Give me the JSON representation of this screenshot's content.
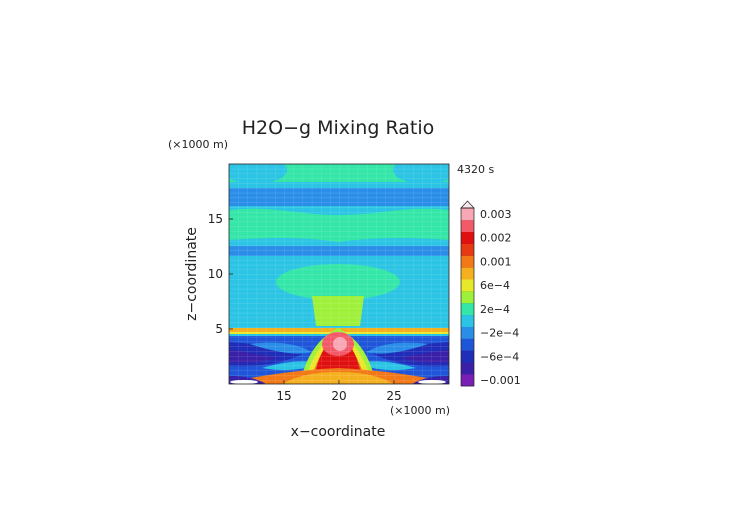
{
  "chart_data": {
    "type": "heatmap",
    "title": "H2O−g Mixing Ratio",
    "xlabel": "x−coordinate",
    "ylabel": "z−coordinate",
    "x_unit": "(×1000 m)",
    "y_unit": "(×1000 m)",
    "time_label": "4320 s",
    "xlim": [
      10,
      30
    ],
    "ylim": [
      0,
      20
    ],
    "x_ticks": [
      15,
      20,
      25
    ],
    "y_ticks": [
      5,
      10,
      15
    ],
    "colorbar": {
      "tick_labels": [
        "0.003",
        "0.002",
        "0.001",
        "6e−4",
        "2e−4",
        "−2e−4",
        "−6e−4",
        "−0.001"
      ],
      "tick_values": [
        0.003,
        0.002,
        0.001,
        0.0006,
        0.0002,
        -0.0002,
        -0.0006,
        -0.001
      ],
      "levels": [
        {
          "value": -0.001,
          "color": "#7a1fb5"
        },
        {
          "value": -0.0008,
          "color": "#3a1fa8"
        },
        {
          "value": -0.0006,
          "color": "#1f2db8"
        },
        {
          "value": -0.0004,
          "color": "#1f55d8"
        },
        {
          "value": -0.0002,
          "color": "#2a8ee8"
        },
        {
          "value": 0.0,
          "color": "#2bc4e4"
        },
        {
          "value": 0.0002,
          "color": "#34e6a8"
        },
        {
          "value": 0.0004,
          "color": "#9ef03a"
        },
        {
          "value": 0.0006,
          "color": "#e8e82a"
        },
        {
          "value": 0.0008,
          "color": "#f5b020"
        },
        {
          "value": 0.001,
          "color": "#f27818"
        },
        {
          "value": 0.0015,
          "color": "#e83a12"
        },
        {
          "value": 0.002,
          "color": "#e01010"
        },
        {
          "value": 0.0025,
          "color": "#f25a6a"
        },
        {
          "value": 0.003,
          "color": "#f7a8b4"
        }
      ]
    }
  }
}
